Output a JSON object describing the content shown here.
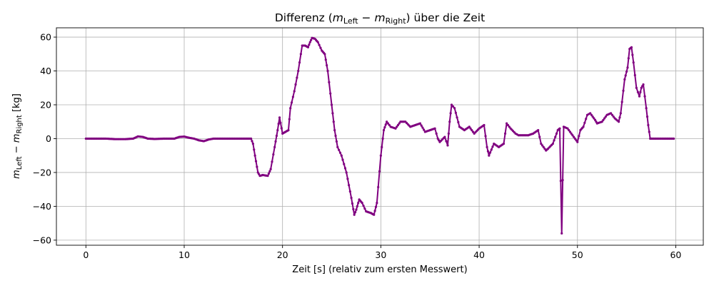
{
  "chart_data": {
    "type": "line",
    "title": {
      "prefix": "Differenz (",
      "m_left_sym": "m",
      "m_left_sub": "Left",
      "minus": " − ",
      "m_right_sym": "m",
      "m_right_sub": "Right",
      "suffix": ") über die Zeit"
    },
    "xlabel": "Zeit [s] (relativ zum ersten Messwert)",
    "ylabel": {
      "m_left_sym": "m",
      "m_left_sub": "Left",
      "minus": " − ",
      "m_right_sym": "m",
      "m_right_sub": "Right",
      "unit": " [kg]"
    },
    "xlim": [
      -3,
      62.8
    ],
    "ylim": [
      -63,
      65.5
    ],
    "xticks": [
      0,
      10,
      20,
      30,
      40,
      50,
      60
    ],
    "yticks": [
      -60,
      -40,
      -20,
      0,
      20,
      40,
      60
    ],
    "grid": true,
    "line_color": "#800080",
    "marker": "dot",
    "series": [
      {
        "points": [
          [
            0,
            0
          ],
          [
            1,
            0
          ],
          [
            2,
            0
          ],
          [
            3,
            -0.3
          ],
          [
            4,
            -0.3
          ],
          [
            4.8,
            0
          ],
          [
            5.3,
            1.3
          ],
          [
            5.8,
            1
          ],
          [
            6.3,
            0
          ],
          [
            7,
            -0.2
          ],
          [
            8,
            0
          ],
          [
            9,
            0
          ],
          [
            9.5,
            1
          ],
          [
            10,
            1.2
          ],
          [
            10.5,
            0.5
          ],
          [
            11,
            0
          ],
          [
            11.5,
            -1
          ],
          [
            12,
            -1.5
          ],
          [
            12.5,
            -0.5
          ],
          [
            13,
            0
          ],
          [
            14,
            0
          ],
          [
            15,
            0
          ],
          [
            16,
            0
          ],
          [
            16.8,
            0
          ],
          [
            17,
            -3
          ],
          [
            17.2,
            -10
          ],
          [
            17.5,
            -20
          ],
          [
            17.7,
            -22
          ],
          [
            18,
            -21.5
          ],
          [
            18.5,
            -22
          ],
          [
            18.8,
            -18
          ],
          [
            19.2,
            -5
          ],
          [
            19.5,
            5
          ],
          [
            19.7,
            12.5
          ],
          [
            20,
            3
          ],
          [
            20.3,
            4
          ],
          [
            20.6,
            5
          ],
          [
            20.8,
            18
          ],
          [
            21.2,
            28
          ],
          [
            21.6,
            40
          ],
          [
            22,
            55
          ],
          [
            22.3,
            55
          ],
          [
            22.6,
            54
          ],
          [
            22.8,
            57
          ],
          [
            23,
            59.5
          ],
          [
            23.3,
            59
          ],
          [
            23.6,
            57
          ],
          [
            24,
            52
          ],
          [
            24.3,
            50
          ],
          [
            24.6,
            40
          ],
          [
            25,
            20
          ],
          [
            25.3,
            5
          ],
          [
            25.6,
            -5
          ],
          [
            26,
            -10
          ],
          [
            26.5,
            -20
          ],
          [
            27,
            -35
          ],
          [
            27.3,
            -45
          ],
          [
            27.5,
            -42
          ],
          [
            27.8,
            -36
          ],
          [
            28.1,
            -38
          ],
          [
            28.5,
            -43
          ],
          [
            29,
            -44
          ],
          [
            29.3,
            -45
          ],
          [
            29.6,
            -38
          ],
          [
            30,
            -10
          ],
          [
            30.3,
            5
          ],
          [
            30.6,
            10
          ],
          [
            31,
            7
          ],
          [
            31.5,
            6
          ],
          [
            32,
            10
          ],
          [
            32.5,
            10
          ],
          [
            33,
            7
          ],
          [
            33.5,
            8
          ],
          [
            34,
            9
          ],
          [
            34.5,
            4
          ],
          [
            35,
            5
          ],
          [
            35.5,
            6
          ],
          [
            35.8,
            0
          ],
          [
            36,
            -2
          ],
          [
            36.5,
            1
          ],
          [
            36.8,
            -4
          ],
          [
            37,
            10
          ],
          [
            37.2,
            20
          ],
          [
            37.5,
            18
          ],
          [
            38,
            7
          ],
          [
            38.5,
            5
          ],
          [
            39,
            7
          ],
          [
            39.5,
            3
          ],
          [
            40,
            6
          ],
          [
            40.5,
            8
          ],
          [
            40.8,
            -5
          ],
          [
            41,
            -10
          ],
          [
            41.5,
            -3
          ],
          [
            42,
            -5
          ],
          [
            42.5,
            -3
          ],
          [
            42.8,
            9
          ],
          [
            43.2,
            6
          ],
          [
            43.7,
            3
          ],
          [
            44,
            2
          ],
          [
            44.5,
            2
          ],
          [
            45,
            2
          ],
          [
            45.5,
            3
          ],
          [
            46,
            5
          ],
          [
            46.3,
            -3
          ],
          [
            46.8,
            -7
          ],
          [
            47,
            -6
          ],
          [
            47.5,
            -3
          ],
          [
            48,
            5
          ],
          [
            48.2,
            6
          ],
          [
            48.4,
            -56
          ],
          [
            48.6,
            7
          ],
          [
            49,
            6
          ],
          [
            49.5,
            2
          ],
          [
            50,
            -2
          ],
          [
            50.3,
            5
          ],
          [
            50.6,
            7
          ],
          [
            51,
            14
          ],
          [
            51.3,
            15
          ],
          [
            51.8,
            11
          ],
          [
            52,
            9
          ],
          [
            52.5,
            10
          ],
          [
            53,
            14
          ],
          [
            53.4,
            15
          ],
          [
            53.8,
            12
          ],
          [
            54.2,
            10
          ],
          [
            54.4,
            15
          ],
          [
            54.8,
            35
          ],
          [
            55.1,
            42
          ],
          [
            55.3,
            53
          ],
          [
            55.5,
            54
          ],
          [
            55.7,
            45
          ],
          [
            56,
            30
          ],
          [
            56.3,
            25
          ],
          [
            56.5,
            30
          ],
          [
            56.7,
            32
          ],
          [
            57,
            18
          ],
          [
            57.2,
            8
          ],
          [
            57.4,
            0
          ],
          [
            58,
            0
          ],
          [
            59,
            0
          ],
          [
            59.8,
            0
          ]
        ]
      }
    ]
  }
}
